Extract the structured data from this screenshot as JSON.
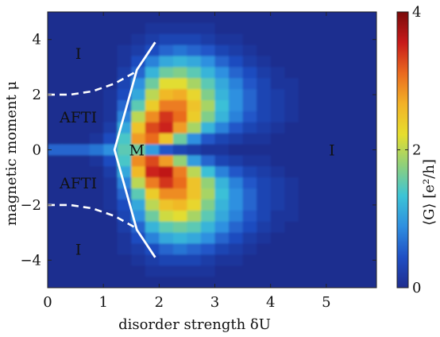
{
  "chart_data": {
    "type": "heatmap",
    "title": "",
    "xlabel": "disorder strength δU",
    "ylabel": "magnetic moment μ",
    "colorbar_label": "⟨G⟩  [e²/h]",
    "xlim": [
      0,
      5.9
    ],
    "ylim": [
      -5,
      5
    ],
    "x_ticks": [
      0,
      1,
      2,
      3,
      4,
      5
    ],
    "y_ticks": [
      -4,
      -2,
      0,
      2,
      4
    ],
    "y_tick_labels": [
      "−4",
      "−2",
      "0",
      "2",
      "4"
    ],
    "colorbar_range": [
      0,
      4
    ],
    "colorbar_ticks": [
      0,
      2,
      4
    ],
    "colormap": [
      "#1f2d8f",
      "#1f4fc4",
      "#2f8fe0",
      "#3cc4d6",
      "#8fd07a",
      "#e6de2e",
      "#f2b227",
      "#ea6a1f",
      "#c71a1a",
      "#7a0a0a"
    ],
    "regions": [
      {
        "label": "I",
        "x": 0.55,
        "y": 3.5
      },
      {
        "label": "AFTI",
        "x": 0.55,
        "y": 1.2
      },
      {
        "label": "M",
        "x": 1.6,
        "y": 0
      },
      {
        "label": "AFTI",
        "x": 0.55,
        "y": -1.2
      },
      {
        "label": "I",
        "x": 0.55,
        "y": -3.6
      },
      {
        "label": "I",
        "x": 5.1,
        "y": 0
      }
    ],
    "phase_boundaries": {
      "upper_dashed": [
        [
          0,
          2.0
        ],
        [
          0.4,
          2.0
        ],
        [
          0.8,
          2.12
        ],
        [
          1.2,
          2.4
        ],
        [
          1.6,
          2.85
        ]
      ],
      "lower_dashed": [
        [
          0,
          -2.0
        ],
        [
          0.4,
          -2.0
        ],
        [
          0.8,
          -2.12
        ],
        [
          1.2,
          -2.4
        ],
        [
          1.6,
          -2.85
        ]
      ],
      "solid_boundary": [
        [
          1.93,
          3.9
        ],
        [
          1.6,
          2.9
        ],
        [
          1.2,
          0
        ],
        [
          1.6,
          -2.9
        ],
        [
          1.93,
          -3.9
        ]
      ]
    },
    "approx_conductance_grid": {
      "x": [
        0,
        0.25,
        0.5,
        0.75,
        1.0,
        1.25,
        1.5,
        1.75,
        2.0,
        2.25,
        2.5,
        2.75,
        3.0,
        3.25,
        3.5,
        3.75,
        4.0,
        4.25,
        4.5,
        4.75,
        5.0,
        5.25,
        5.5,
        5.75
      ],
      "y": [
        4.8,
        4.4,
        4.0,
        3.6,
        3.2,
        2.8,
        2.4,
        2.0,
        1.6,
        1.2,
        0.8,
        0.4,
        0.0,
        -0.4,
        -0.8,
        -1.2,
        -1.6,
        -2.0,
        -2.4,
        -2.8,
        -3.2,
        -3.6,
        -4.0,
        -4.4,
        -4.8
      ],
      "values": [
        [
          0,
          0,
          0,
          0,
          0,
          0,
          0,
          0,
          0,
          0,
          0,
          0,
          0,
          0,
          0,
          0,
          0,
          0,
          0,
          0,
          0,
          0,
          0,
          0
        ],
        [
          0,
          0,
          0,
          0,
          0,
          0,
          0,
          0.1,
          0.1,
          0.1,
          0.1,
          0.1,
          0,
          0,
          0,
          0,
          0,
          0,
          0,
          0,
          0,
          0,
          0,
          0
        ],
        [
          0,
          0,
          0,
          0,
          0,
          0,
          0.1,
          0.2,
          0.3,
          0.3,
          0.3,
          0.2,
          0.1,
          0.1,
          0,
          0,
          0,
          0,
          0,
          0,
          0,
          0,
          0,
          0
        ],
        [
          0,
          0,
          0,
          0,
          0,
          0.1,
          0.2,
          0.4,
          0.6,
          0.7,
          0.6,
          0.5,
          0.3,
          0.2,
          0.1,
          0,
          0,
          0,
          0,
          0,
          0,
          0,
          0,
          0
        ],
        [
          0,
          0,
          0,
          0,
          0,
          0.1,
          0.4,
          0.8,
          1.1,
          1.2,
          1.1,
          0.9,
          0.6,
          0.4,
          0.2,
          0.1,
          0,
          0,
          0,
          0,
          0,
          0,
          0,
          0
        ],
        [
          0,
          0,
          0,
          0,
          0,
          0.2,
          0.6,
          1.2,
          1.6,
          1.7,
          1.5,
          1.2,
          0.9,
          0.6,
          0.4,
          0.2,
          0.1,
          0,
          0,
          0,
          0,
          0,
          0,
          0
        ],
        [
          0,
          0,
          0,
          0,
          0,
          0.3,
          0.9,
          1.6,
          2.2,
          2.2,
          1.9,
          1.5,
          1.1,
          0.8,
          0.5,
          0.3,
          0.1,
          0.1,
          0,
          0,
          0,
          0,
          0,
          0
        ],
        [
          0,
          0,
          0,
          0,
          0.1,
          0.4,
          1.1,
          2.0,
          2.6,
          2.7,
          2.3,
          1.7,
          1.2,
          0.9,
          0.6,
          0.3,
          0.2,
          0.1,
          0,
          0,
          0,
          0,
          0,
          0
        ],
        [
          0,
          0,
          0,
          0,
          0.1,
          0.6,
          1.5,
          2.4,
          3.0,
          3.0,
          2.5,
          1.9,
          1.3,
          0.9,
          0.6,
          0.3,
          0.2,
          0.1,
          0,
          0,
          0,
          0,
          0,
          0
        ],
        [
          0,
          0,
          0,
          0,
          0.1,
          0.8,
          2.0,
          2.9,
          3.4,
          3.1,
          2.4,
          1.7,
          1.2,
          0.8,
          0.5,
          0.3,
          0.2,
          0.1,
          0,
          0,
          0,
          0,
          0,
          0
        ],
        [
          0,
          0,
          0,
          0,
          0.2,
          1.1,
          2.5,
          3.3,
          3.5,
          2.8,
          1.9,
          1.2,
          0.8,
          0.5,
          0.3,
          0.2,
          0.1,
          0,
          0,
          0,
          0,
          0,
          0,
          0
        ],
        [
          0,
          0,
          0,
          0.1,
          0.4,
          1.4,
          2.8,
          3.1,
          2.5,
          1.6,
          0.9,
          0.5,
          0.3,
          0.2,
          0.1,
          0.1,
          0,
          0,
          0,
          0,
          0,
          0,
          0,
          0
        ],
        [
          0.6,
          0.6,
          0.6,
          0.7,
          0.9,
          1.5,
          1.6,
          1.0,
          0.5,
          0.3,
          0.2,
          0.1,
          0.1,
          0,
          0,
          0,
          0,
          0,
          0,
          0,
          0,
          0,
          0,
          0
        ],
        [
          0,
          0,
          0,
          0.1,
          0.4,
          1.4,
          2.9,
          3.3,
          2.8,
          1.8,
          1.0,
          0.6,
          0.3,
          0.2,
          0.1,
          0.1,
          0,
          0,
          0,
          0,
          0,
          0,
          0,
          0
        ],
        [
          0,
          0,
          0,
          0,
          0.2,
          1.1,
          2.6,
          3.5,
          3.6,
          3.0,
          2.0,
          1.3,
          0.8,
          0.5,
          0.3,
          0.2,
          0.1,
          0,
          0,
          0,
          0,
          0,
          0,
          0
        ],
        [
          0,
          0,
          0,
          0,
          0.1,
          0.8,
          2.0,
          3.0,
          3.4,
          3.1,
          2.5,
          1.8,
          1.2,
          0.8,
          0.5,
          0.3,
          0.2,
          0.1,
          0,
          0,
          0,
          0,
          0,
          0
        ],
        [
          0,
          0,
          0,
          0,
          0.1,
          0.6,
          1.5,
          2.4,
          2.9,
          2.9,
          2.5,
          1.9,
          1.3,
          0.9,
          0.6,
          0.3,
          0.2,
          0.1,
          0,
          0,
          0,
          0,
          0,
          0
        ],
        [
          0,
          0,
          0,
          0,
          0.1,
          0.4,
          1.1,
          2.0,
          2.5,
          2.6,
          2.3,
          1.7,
          1.2,
          0.9,
          0.6,
          0.3,
          0.2,
          0.1,
          0,
          0,
          0,
          0,
          0,
          0
        ],
        [
          0,
          0,
          0,
          0,
          0,
          0.3,
          0.9,
          1.6,
          2.1,
          2.2,
          1.9,
          1.5,
          1.1,
          0.8,
          0.5,
          0.3,
          0.1,
          0.1,
          0,
          0,
          0,
          0,
          0,
          0
        ],
        [
          0,
          0,
          0,
          0,
          0,
          0.2,
          0.6,
          1.2,
          1.5,
          1.6,
          1.5,
          1.2,
          0.9,
          0.6,
          0.4,
          0.2,
          0.1,
          0,
          0,
          0,
          0,
          0,
          0,
          0
        ],
        [
          0,
          0,
          0,
          0,
          0,
          0.1,
          0.4,
          0.8,
          1.1,
          1.2,
          1.1,
          0.9,
          0.6,
          0.4,
          0.2,
          0.1,
          0,
          0,
          0,
          0,
          0,
          0,
          0,
          0
        ],
        [
          0,
          0,
          0,
          0,
          0,
          0.1,
          0.2,
          0.4,
          0.6,
          0.7,
          0.6,
          0.5,
          0.3,
          0.2,
          0.1,
          0,
          0,
          0,
          0,
          0,
          0,
          0,
          0,
          0
        ],
        [
          0,
          0,
          0,
          0,
          0,
          0,
          0.1,
          0.2,
          0.3,
          0.3,
          0.3,
          0.2,
          0.1,
          0.1,
          0,
          0,
          0,
          0,
          0,
          0,
          0,
          0,
          0,
          0
        ],
        [
          0,
          0,
          0,
          0,
          0,
          0,
          0,
          0.1,
          0.1,
          0.1,
          0.1,
          0.1,
          0,
          0,
          0,
          0,
          0,
          0,
          0,
          0,
          0,
          0,
          0,
          0
        ],
        [
          0,
          0,
          0,
          0,
          0,
          0,
          0,
          0,
          0,
          0,
          0,
          0,
          0,
          0,
          0,
          0,
          0,
          0,
          0,
          0,
          0,
          0,
          0,
          0
        ]
      ]
    }
  }
}
